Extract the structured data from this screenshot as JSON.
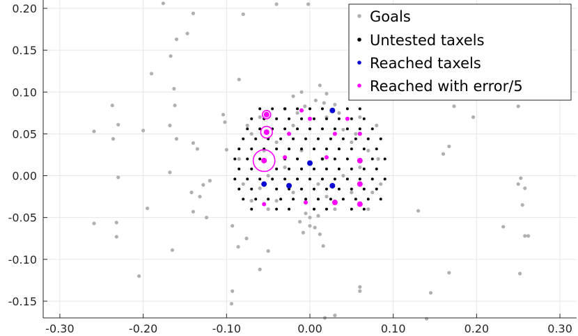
{
  "chart_data": {
    "type": "scatter",
    "title": "",
    "xlabel": "",
    "ylabel": "",
    "xlim": [
      -0.32,
      0.32
    ],
    "ylim": [
      -0.17,
      0.21
    ],
    "x_ticks": [
      -0.3,
      -0.2,
      -0.1,
      0.0,
      0.1,
      0.2,
      0.3
    ],
    "x_tick_labels": [
      "-0.30",
      "-0.20",
      "-0.10",
      "0.00",
      "0.10",
      "0.20",
      "0.30"
    ],
    "y_ticks": [
      0.2,
      0.15,
      0.1,
      0.05,
      0.0,
      -0.05,
      -0.1,
      -0.15
    ],
    "y_tick_labels": [
      "0.20",
      "0.15",
      "0.10",
      "0.05",
      "0.00",
      "-0.05",
      "-0.10",
      "-0.15"
    ],
    "grid": true,
    "legend_position": "top-right",
    "legend": [
      {
        "label": "Goals",
        "color": "#b0b0b0"
      },
      {
        "label": "Untested taxels",
        "color": "#000000"
      },
      {
        "label": "Reached taxels",
        "color": "#0a0ad2"
      },
      {
        "label": "Reached with error/5",
        "color": "#ff00ff"
      }
    ],
    "series": [
      {
        "name": "Goals",
        "color": "#b0b0b0",
        "points": [
          [
            -0.176,
            0.206
          ],
          [
            -0.14,
            0.194
          ],
          [
            -0.08,
            0.193
          ],
          [
            -0.04,
            0.205
          ],
          [
            -0.002,
            0.205
          ],
          [
            -0.16,
            0.163
          ],
          [
            -0.147,
            0.17
          ],
          [
            -0.167,
            0.143
          ],
          [
            -0.19,
            0.122
          ],
          [
            -0.163,
            0.104
          ],
          [
            -0.237,
            0.084
          ],
          [
            -0.162,
            0.084
          ],
          [
            -0.104,
            0.073
          ],
          [
            -0.23,
            0.061
          ],
          [
            -0.168,
            0.06
          ],
          [
            -0.259,
            0.053
          ],
          [
            -0.2,
            0.054
          ],
          [
            -0.236,
            0.044
          ],
          [
            -0.16,
            0.044
          ],
          [
            -0.14,
            0.039
          ],
          [
            -0.135,
            0.032
          ],
          [
            -0.1,
            0.031
          ],
          [
            -0.102,
            0.064
          ],
          [
            -0.085,
            0.115
          ],
          [
            -0.168,
            0.004
          ],
          [
            -0.23,
            -0.002
          ],
          [
            -0.12,
            -0.006
          ],
          [
            -0.128,
            -0.011
          ],
          [
            -0.142,
            -0.02
          ],
          [
            -0.132,
            -0.025
          ],
          [
            -0.195,
            -0.039
          ],
          [
            -0.14,
            -0.043
          ],
          [
            -0.124,
            -0.05
          ],
          [
            -0.259,
            -0.057
          ],
          [
            -0.232,
            -0.056
          ],
          [
            -0.232,
            -0.073
          ],
          [
            -0.093,
            -0.06
          ],
          [
            -0.086,
            -0.085
          ],
          [
            -0.076,
            -0.075
          ],
          [
            -0.165,
            -0.089
          ],
          [
            -0.205,
            -0.12
          ],
          [
            -0.093,
            -0.138
          ],
          [
            -0.094,
            -0.153
          ],
          [
            -0.06,
            -0.112
          ],
          [
            -0.05,
            -0.09
          ],
          [
            0.03,
            -0.167
          ],
          [
            0.06,
            -0.138
          ],
          [
            0.018,
            -0.17
          ],
          [
            0.06,
            -0.133
          ],
          [
            0.13,
            -0.042
          ],
          [
            0.16,
            0.026
          ],
          [
            0.167,
            0.035
          ],
          [
            0.173,
            0.083
          ],
          [
            0.196,
            0.07
          ],
          [
            0.25,
            0.083
          ],
          [
            0.253,
            -0.003
          ],
          [
            0.25,
            -0.01
          ],
          [
            0.258,
            -0.015
          ],
          [
            0.255,
            -0.035
          ],
          [
            0.232,
            -0.061
          ],
          [
            0.258,
            -0.072
          ],
          [
            0.262,
            -0.072
          ],
          [
            0.167,
            -0.116
          ],
          [
            0.252,
            -0.117
          ],
          [
            0.145,
            -0.14
          ],
          [
            0.14,
            -0.171
          ],
          [
            0.016,
            -0.084
          ],
          [
            -0.05,
            -0.04
          ],
          [
            -0.07,
            -0.03
          ],
          [
            0.07,
            -0.04
          ],
          [
            -0.06,
            0.07
          ],
          [
            -0.03,
            0.08
          ],
          [
            0.03,
            0.085
          ],
          [
            0.06,
            0.07
          ],
          [
            0.08,
            0.06
          ],
          [
            0.082,
            0.02
          ],
          [
            0.085,
            -0.01
          ],
          [
            -0.085,
            0.02
          ],
          [
            -0.08,
            -0.01
          ],
          [
            -0.07,
            0.05
          ],
          [
            -0.02,
            0.06
          ],
          [
            0.02,
            0.07
          ],
          [
            0.04,
            0.055
          ],
          [
            -0.04,
            0.04
          ],
          [
            0.05,
            0.04
          ],
          [
            -0.01,
            0.03
          ],
          [
            0.015,
            0.02
          ],
          [
            -0.03,
            0.01
          ],
          [
            0.04,
            0.0
          ],
          [
            -0.02,
            -0.02
          ],
          [
            0.02,
            -0.025
          ],
          [
            -0.04,
            -0.03
          ],
          [
            0.03,
            -0.04
          ],
          [
            0.0,
            -0.05
          ],
          [
            0.01,
            -0.01
          ],
          [
            -0.015,
            0.075
          ],
          [
            0.007,
            0.09
          ],
          [
            -0.01,
            0.1
          ],
          [
            0.012,
            0.108
          ],
          [
            -0.02,
            0.095
          ],
          [
            0.02,
            0.098
          ],
          [
            -0.006,
            0.083
          ],
          [
            0.017,
            0.087
          ],
          [
            -0.012,
            -0.055
          ],
          [
            0.006,
            -0.062
          ],
          [
            -0.008,
            -0.068
          ],
          [
            0.012,
            -0.07
          ],
          [
            0.0,
            -0.06
          ],
          [
            -0.005,
            -0.045
          ],
          [
            0.01,
            -0.048
          ],
          [
            -0.05,
            0.0
          ],
          [
            0.06,
            0.01
          ],
          [
            0.05,
            -0.02
          ],
          [
            -0.06,
            -0.015
          ],
          [
            0.07,
            0.03
          ],
          [
            -0.075,
            0.06
          ],
          [
            0.075,
            -0.02
          ],
          [
            -0.055,
            0.03
          ],
          [
            0.055,
            0.05
          ],
          [
            0.035,
            0.075
          ]
        ]
      },
      {
        "name": "Untested taxels",
        "color": "#000000",
        "points": [
          [
            -0.06,
            0.08
          ],
          [
            -0.045,
            0.08
          ],
          [
            -0.03,
            0.08
          ],
          [
            -0.015,
            0.08
          ],
          [
            0.0,
            0.08
          ],
          [
            0.015,
            0.08
          ],
          [
            0.045,
            0.08
          ],
          [
            0.06,
            0.08
          ],
          [
            -0.07,
            0.068
          ],
          [
            -0.055,
            0.068
          ],
          [
            -0.04,
            0.068
          ],
          [
            -0.025,
            0.068
          ],
          [
            -0.01,
            0.068
          ],
          [
            0.005,
            0.068
          ],
          [
            0.02,
            0.068
          ],
          [
            0.035,
            0.068
          ],
          [
            0.05,
            0.068
          ],
          [
            0.065,
            0.068
          ],
          [
            -0.075,
            0.056
          ],
          [
            -0.06,
            0.056
          ],
          [
            -0.045,
            0.056
          ],
          [
            -0.03,
            0.056
          ],
          [
            -0.015,
            0.056
          ],
          [
            0.0,
            0.056
          ],
          [
            0.015,
            0.056
          ],
          [
            0.03,
            0.056
          ],
          [
            0.045,
            0.056
          ],
          [
            0.06,
            0.056
          ],
          [
            0.075,
            0.056
          ],
          [
            -0.08,
            0.044
          ],
          [
            -0.065,
            0.044
          ],
          [
            -0.05,
            0.044
          ],
          [
            -0.035,
            0.044
          ],
          [
            -0.02,
            0.044
          ],
          [
            -0.005,
            0.044
          ],
          [
            0.01,
            0.044
          ],
          [
            0.025,
            0.044
          ],
          [
            0.04,
            0.044
          ],
          [
            0.055,
            0.044
          ],
          [
            0.07,
            0.044
          ],
          [
            0.085,
            0.044
          ],
          [
            -0.085,
            0.032
          ],
          [
            -0.07,
            0.032
          ],
          [
            -0.055,
            0.032
          ],
          [
            -0.04,
            0.032
          ],
          [
            -0.025,
            0.032
          ],
          [
            -0.01,
            0.032
          ],
          [
            0.005,
            0.032
          ],
          [
            0.02,
            0.032
          ],
          [
            0.035,
            0.032
          ],
          [
            0.05,
            0.032
          ],
          [
            0.065,
            0.032
          ],
          [
            0.08,
            0.032
          ],
          [
            -0.09,
            0.02
          ],
          [
            -0.075,
            0.02
          ],
          [
            -0.06,
            0.02
          ],
          [
            -0.03,
            0.02
          ],
          [
            -0.015,
            0.02
          ],
          [
            0.015,
            0.02
          ],
          [
            0.03,
            0.02
          ],
          [
            0.045,
            0.02
          ],
          [
            0.075,
            0.02
          ],
          [
            0.09,
            0.02
          ],
          [
            -0.085,
            0.008
          ],
          [
            -0.07,
            0.008
          ],
          [
            -0.04,
            0.008
          ],
          [
            -0.025,
            0.008
          ],
          [
            -0.01,
            0.008
          ],
          [
            0.005,
            0.008
          ],
          [
            0.02,
            0.008
          ],
          [
            0.035,
            0.008
          ],
          [
            0.05,
            0.008
          ],
          [
            0.065,
            0.008
          ],
          [
            0.08,
            0.008
          ],
          [
            -0.09,
            -0.004
          ],
          [
            -0.075,
            -0.004
          ],
          [
            -0.06,
            -0.004
          ],
          [
            -0.045,
            -0.004
          ],
          [
            -0.03,
            -0.004
          ],
          [
            -0.015,
            -0.004
          ],
          [
            0.0,
            -0.004
          ],
          [
            0.015,
            -0.004
          ],
          [
            0.03,
            -0.004
          ],
          [
            0.045,
            -0.004
          ],
          [
            0.06,
            -0.004
          ],
          [
            0.075,
            -0.004
          ],
          [
            0.09,
            -0.004
          ],
          [
            -0.085,
            -0.016
          ],
          [
            -0.07,
            -0.016
          ],
          [
            -0.04,
            -0.016
          ],
          [
            -0.025,
            -0.016
          ],
          [
            -0.01,
            -0.016
          ],
          [
            0.005,
            -0.016
          ],
          [
            0.02,
            -0.016
          ],
          [
            0.035,
            -0.016
          ],
          [
            0.05,
            -0.016
          ],
          [
            0.065,
            -0.016
          ],
          [
            0.08,
            -0.016
          ],
          [
            -0.08,
            -0.028
          ],
          [
            -0.065,
            -0.028
          ],
          [
            -0.05,
            -0.028
          ],
          [
            -0.035,
            -0.028
          ],
          [
            -0.02,
            -0.028
          ],
          [
            -0.005,
            -0.028
          ],
          [
            0.01,
            -0.028
          ],
          [
            0.025,
            -0.028
          ],
          [
            0.04,
            -0.028
          ],
          [
            0.055,
            -0.028
          ],
          [
            0.07,
            -0.028
          ],
          [
            0.085,
            -0.028
          ],
          [
            -0.07,
            -0.04
          ],
          [
            -0.04,
            -0.04
          ],
          [
            -0.025,
            -0.04
          ],
          [
            0.005,
            -0.04
          ],
          [
            0.02,
            -0.04
          ],
          [
            0.05,
            -0.04
          ],
          [
            0.065,
            -0.04
          ]
        ]
      },
      {
        "name": "Reached taxels",
        "color": "#0a0ad2",
        "points": [
          [
            0.027,
            0.078
          ],
          [
            0.0,
            0.015
          ],
          [
            -0.055,
            -0.01
          ],
          [
            -0.025,
            -0.012
          ],
          [
            0.027,
            -0.012
          ]
        ]
      },
      {
        "name": "Reached with error/5",
        "color": "#ff00ff",
        "points": [
          [
            -0.052,
            0.073
          ],
          [
            -0.052,
            0.052
          ],
          [
            -0.055,
            0.018
          ],
          [
            0.06,
            0.018
          ],
          [
            0.06,
            -0.01
          ],
          [
            0.03,
            -0.032
          ],
          [
            0.06,
            -0.034
          ],
          [
            -0.01,
            0.078
          ],
          [
            0.0,
            0.068
          ],
          [
            0.045,
            0.068
          ],
          [
            -0.025,
            0.05
          ],
          [
            0.03,
            0.05
          ],
          [
            0.06,
            0.05
          ],
          [
            -0.03,
            0.022
          ],
          [
            0.02,
            0.022
          ],
          [
            -0.005,
            -0.032
          ],
          [
            -0.055,
            -0.034
          ]
        ],
        "error_radii": [
          0.005,
          0.007,
          0.013,
          0,
          0,
          0,
          0,
          0,
          0,
          0,
          0,
          0,
          0,
          0,
          0,
          0,
          0
        ]
      }
    ]
  }
}
